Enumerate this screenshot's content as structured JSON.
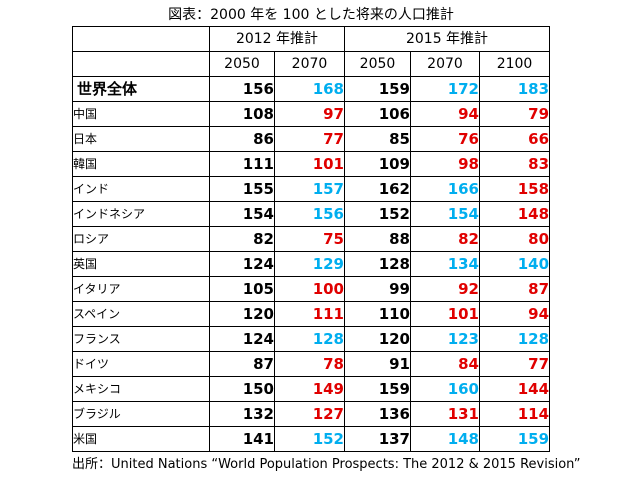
{
  "title": "図表：2000 年を 100 とした将来の人口推計",
  "header": {
    "group_2012": "2012 年推計",
    "group_2015": "2015 年推計",
    "years_2012": [
      "2050",
      "2070"
    ],
    "years_2015": [
      "2050",
      "2070",
      "2100"
    ]
  },
  "colors": {
    "black": "#000000",
    "red": "#e00000",
    "blue": "#00aeef"
  },
  "rows": [
    {
      "country": "世界全体",
      "v": [
        "156",
        "168",
        "159",
        "172",
        "183"
      ],
      "c": [
        "black",
        "blue",
        "black",
        "blue",
        "blue"
      ]
    },
    {
      "country": "中国",
      "v": [
        "108",
        "97",
        "106",
        "94",
        "79"
      ],
      "c": [
        "black",
        "red",
        "black",
        "red",
        "red"
      ]
    },
    {
      "country": "日本",
      "v": [
        "86",
        "77",
        "85",
        "76",
        "66"
      ],
      "c": [
        "black",
        "red",
        "black",
        "red",
        "red"
      ]
    },
    {
      "country": "韓国",
      "v": [
        "111",
        "101",
        "109",
        "98",
        "83"
      ],
      "c": [
        "black",
        "red",
        "black",
        "red",
        "red"
      ]
    },
    {
      "country": "インド",
      "v": [
        "155",
        "157",
        "162",
        "166",
        "158"
      ],
      "c": [
        "black",
        "blue",
        "black",
        "blue",
        "red"
      ]
    },
    {
      "country": "インドネシア",
      "v": [
        "154",
        "156",
        "152",
        "154",
        "148"
      ],
      "c": [
        "black",
        "blue",
        "black",
        "blue",
        "red"
      ]
    },
    {
      "country": "ロシア",
      "v": [
        "82",
        "75",
        "88",
        "82",
        "80"
      ],
      "c": [
        "black",
        "red",
        "black",
        "red",
        "red"
      ]
    },
    {
      "country": "英国",
      "v": [
        "124",
        "129",
        "128",
        "134",
        "140"
      ],
      "c": [
        "black",
        "blue",
        "black",
        "blue",
        "blue"
      ]
    },
    {
      "country": "イタリア",
      "v": [
        "105",
        "100",
        "99",
        "92",
        "87"
      ],
      "c": [
        "black",
        "red",
        "black",
        "red",
        "red"
      ]
    },
    {
      "country": "スペイン",
      "v": [
        "120",
        "111",
        "110",
        "101",
        "94"
      ],
      "c": [
        "black",
        "red",
        "black",
        "red",
        "red"
      ]
    },
    {
      "country": "フランス",
      "v": [
        "124",
        "128",
        "120",
        "123",
        "128"
      ],
      "c": [
        "black",
        "blue",
        "black",
        "blue",
        "blue"
      ]
    },
    {
      "country": "ドイツ",
      "v": [
        "87",
        "78",
        "91",
        "84",
        "77"
      ],
      "c": [
        "black",
        "red",
        "black",
        "red",
        "red"
      ]
    },
    {
      "country": "メキシコ",
      "v": [
        "150",
        "149",
        "159",
        "160",
        "144"
      ],
      "c": [
        "black",
        "red",
        "black",
        "blue",
        "red"
      ]
    },
    {
      "country": "ブラジル",
      "v": [
        "132",
        "127",
        "136",
        "131",
        "114"
      ],
      "c": [
        "black",
        "red",
        "black",
        "red",
        "red"
      ]
    },
    {
      "country": "米国",
      "v": [
        "141",
        "152",
        "137",
        "148",
        "159"
      ],
      "c": [
        "black",
        "blue",
        "black",
        "blue",
        "blue"
      ]
    }
  ],
  "source": "出所：United Nations “World Population Prospects: The 2012 & 2015 Revision”"
}
